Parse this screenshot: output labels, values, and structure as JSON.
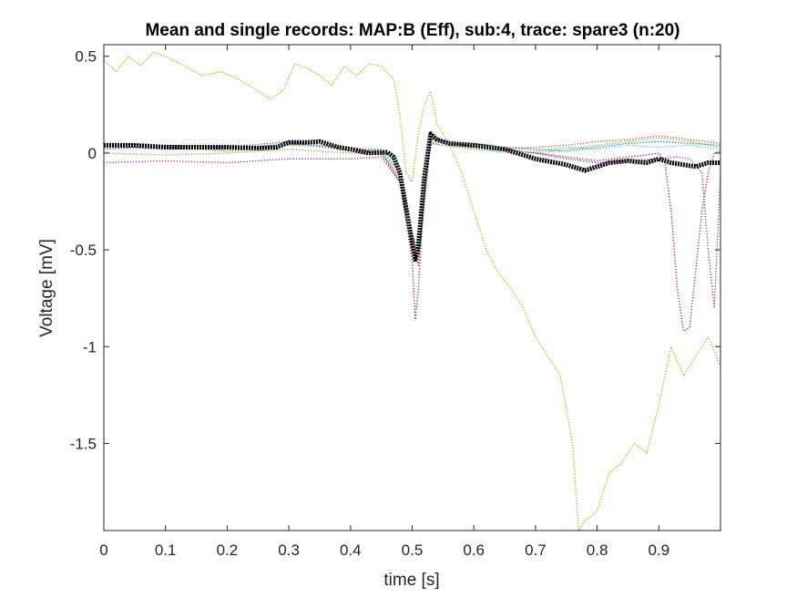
{
  "chart_data": {
    "type": "line",
    "title": "Mean and single records: MAP:B (Eff), sub:4, trace: spare3 (n:20)",
    "xlabel": "time [s]",
    "ylabel": "Voltage [mV]",
    "xlim": [
      0,
      1.0
    ],
    "ylim": [
      -1.95,
      0.56
    ],
    "xticks": [
      0,
      0.1,
      0.2,
      0.3,
      0.4,
      0.5,
      0.6,
      0.7,
      0.8,
      0.9
    ],
    "xtick_labels": [
      "0",
      "0.1",
      "0.2",
      "0.3",
      "0.4",
      "0.5",
      "0.6",
      "0.7",
      "0.8",
      "0.9"
    ],
    "yticks": [
      0.5,
      0,
      -0.5,
      -1,
      -1.5
    ],
    "ytick_labels": [
      "0.5",
      "0",
      "-0.5",
      "-1",
      "-1.5"
    ],
    "grid": false,
    "legend": "none",
    "series": [
      {
        "color": "#000000",
        "style": "thick-dotted",
        "x": [
          0,
          0.05,
          0.1,
          0.15,
          0.2,
          0.25,
          0.28,
          0.3,
          0.33,
          0.35,
          0.38,
          0.4,
          0.43,
          0.46,
          0.47,
          0.48,
          0.49,
          0.5,
          0.505,
          0.51,
          0.52,
          0.53,
          0.54,
          0.56,
          0.6,
          0.65,
          0.7,
          0.75,
          0.77,
          0.78,
          0.8,
          0.82,
          0.85,
          0.88,
          0.9,
          0.92,
          0.94,
          0.96,
          0.98,
          1.0
        ],
        "y": [
          0.04,
          0.04,
          0.03,
          0.03,
          0.03,
          0.025,
          0.03,
          0.055,
          0.055,
          0.06,
          0.03,
          0.02,
          0.0,
          0.005,
          -0.02,
          -0.1,
          -0.28,
          -0.46,
          -0.55,
          -0.48,
          -0.12,
          0.1,
          0.07,
          0.05,
          0.04,
          0.02,
          -0.03,
          -0.06,
          -0.08,
          -0.09,
          -0.07,
          -0.05,
          -0.04,
          -0.05,
          -0.03,
          -0.05,
          -0.06,
          -0.07,
          -0.05,
          -0.05
        ]
      },
      {
        "color": "#b59f0d",
        "style": "dotted",
        "x": [
          0,
          0.02,
          0.04,
          0.06,
          0.08,
          0.1,
          0.13,
          0.16,
          0.19,
          0.22,
          0.25,
          0.27,
          0.29,
          0.31,
          0.33,
          0.35,
          0.37,
          0.39,
          0.41,
          0.43,
          0.45,
          0.47,
          0.48,
          0.49,
          0.5,
          0.51,
          0.52,
          0.53,
          0.54,
          0.56,
          0.58,
          0.6,
          0.62,
          0.64,
          0.66,
          0.68,
          0.7,
          0.72,
          0.74,
          0.76,
          0.77,
          0.78,
          0.8,
          0.82,
          0.84,
          0.86,
          0.88,
          0.9,
          0.92,
          0.94,
          0.96,
          0.98,
          1.0
        ],
        "y": [
          0.48,
          0.42,
          0.5,
          0.45,
          0.52,
          0.5,
          0.45,
          0.4,
          0.42,
          0.38,
          0.32,
          0.28,
          0.32,
          0.46,
          0.44,
          0.4,
          0.35,
          0.45,
          0.4,
          0.46,
          0.45,
          0.38,
          0.2,
          -0.1,
          -0.15,
          0.1,
          0.25,
          0.32,
          0.15,
          0.05,
          -0.1,
          -0.3,
          -0.5,
          -0.62,
          -0.7,
          -0.8,
          -0.95,
          -1.05,
          -1.15,
          -1.5,
          -1.95,
          -1.9,
          -1.85,
          -1.65,
          -1.6,
          -1.5,
          -1.55,
          -1.3,
          -1.0,
          -1.15,
          -1.05,
          -0.95,
          -1.1
        ]
      },
      {
        "color": "#a2142f",
        "style": "dotted",
        "x": [
          0,
          0.1,
          0.2,
          0.3,
          0.4,
          0.45,
          0.48,
          0.5,
          0.505,
          0.51,
          0.52,
          0.53,
          0.55,
          0.6,
          0.65,
          0.7,
          0.75,
          0.8,
          0.85,
          0.88,
          0.9,
          0.91,
          0.92,
          0.93,
          0.94,
          0.95,
          0.96,
          0.97,
          0.98,
          0.99,
          1.0
        ],
        "y": [
          0.03,
          0.03,
          0.02,
          0.05,
          0.02,
          0.0,
          -0.15,
          -0.55,
          -0.86,
          -0.7,
          -0.2,
          0.08,
          0.06,
          0.03,
          0.02,
          0.0,
          -0.02,
          -0.04,
          -0.02,
          -0.01,
          0.0,
          -0.05,
          -0.3,
          -0.7,
          -0.92,
          -0.9,
          -0.6,
          -0.3,
          -0.1,
          0.0,
          0.01
        ]
      },
      {
        "color": "#7e2f8e",
        "style": "dotted",
        "x": [
          0,
          0.1,
          0.2,
          0.3,
          0.4,
          0.45,
          0.48,
          0.5,
          0.51,
          0.52,
          0.53,
          0.55,
          0.6,
          0.65,
          0.7,
          0.75,
          0.8,
          0.85,
          0.9,
          0.93,
          0.95,
          0.97,
          0.98,
          0.99,
          1.0
        ],
        "y": [
          -0.05,
          -0.04,
          -0.05,
          -0.03,
          -0.03,
          -0.02,
          -0.15,
          -0.48,
          -0.58,
          -0.25,
          0.05,
          0.04,
          0.02,
          0.01,
          0.0,
          -0.03,
          -0.05,
          -0.04,
          -0.03,
          -0.02,
          -0.03,
          -0.1,
          -0.5,
          -0.8,
          -0.1
        ]
      },
      {
        "color": "#0072bd",
        "style": "dotted",
        "x": [
          0,
          0.1,
          0.2,
          0.3,
          0.4,
          0.45,
          0.48,
          0.5,
          0.51,
          0.52,
          0.53,
          0.55,
          0.6,
          0.65,
          0.7,
          0.75,
          0.8,
          0.85,
          0.9,
          0.95,
          1.0
        ],
        "y": [
          0.05,
          0.04,
          0.03,
          0.06,
          0.02,
          0.02,
          -0.1,
          -0.42,
          -0.5,
          -0.2,
          0.09,
          0.06,
          0.05,
          0.03,
          0.02,
          0.01,
          0.03,
          0.05,
          0.06,
          0.05,
          0.04
        ]
      },
      {
        "color": "#77ac30",
        "style": "dotted",
        "x": [
          0,
          0.1,
          0.2,
          0.3,
          0.4,
          0.45,
          0.48,
          0.5,
          0.51,
          0.52,
          0.53,
          0.55,
          0.6,
          0.65,
          0.7,
          0.75,
          0.8,
          0.85,
          0.9,
          0.95,
          1.0
        ],
        "y": [
          0.0,
          -0.01,
          0.0,
          0.02,
          0.0,
          -0.01,
          -0.12,
          -0.45,
          -0.52,
          -0.22,
          0.06,
          0.04,
          0.02,
          0.01,
          0.0,
          0.02,
          0.04,
          0.06,
          0.08,
          0.06,
          0.03
        ]
      },
      {
        "color": "#d95319",
        "style": "dotted",
        "x": [
          0,
          0.1,
          0.2,
          0.3,
          0.4,
          0.45,
          0.48,
          0.5,
          0.51,
          0.52,
          0.53,
          0.55,
          0.6,
          0.65,
          0.7,
          0.75,
          0.8,
          0.85,
          0.9,
          0.95,
          1.0
        ],
        "y": [
          0.02,
          0.03,
          0.01,
          0.04,
          0.03,
          0.01,
          -0.14,
          -0.5,
          -0.57,
          -0.24,
          0.07,
          0.05,
          0.04,
          0.02,
          0.03,
          0.04,
          0.06,
          0.07,
          0.09,
          0.07,
          0.05
        ]
      },
      {
        "color": "#4dbeee",
        "style": "dotted",
        "x": [
          0,
          0.1,
          0.2,
          0.3,
          0.4,
          0.45,
          0.48,
          0.5,
          0.51,
          0.52,
          0.53,
          0.55,
          0.6,
          0.65,
          0.7,
          0.75,
          0.8,
          0.85,
          0.9,
          0.95,
          1.0
        ],
        "y": [
          0.03,
          0.02,
          0.02,
          0.05,
          0.01,
          0.0,
          -0.11,
          -0.44,
          -0.51,
          -0.21,
          0.08,
          0.05,
          0.03,
          0.0,
          0.01,
          0.03,
          0.02,
          0.04,
          0.03,
          0.04,
          0.02
        ]
      }
    ]
  }
}
